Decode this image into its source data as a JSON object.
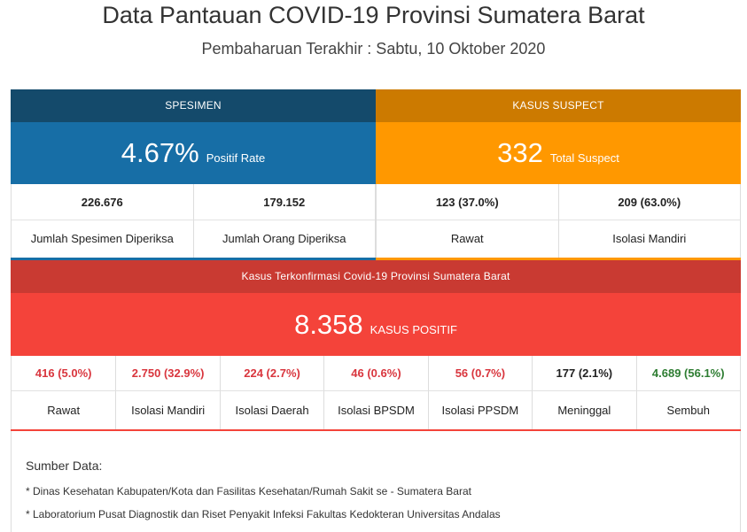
{
  "header": {
    "title": "Data Pantauan COVID-19 Provinsi Sumatera Barat",
    "subtitle": "Pembaharuan Terakhir : Sabtu, 10 Oktober 2020"
  },
  "spesimen": {
    "heading": "SPESIMEN",
    "big_value": "4.67%",
    "big_label": "Positif Rate",
    "cells": [
      {
        "value": "226.676",
        "label": "Jumlah Spesimen Diperiksa"
      },
      {
        "value": "179.152",
        "label": "Jumlah Orang Diperiksa"
      }
    ]
  },
  "suspect": {
    "heading": "KASUS SUSPECT",
    "big_value": "332",
    "big_label": "Total Suspect",
    "cells": [
      {
        "value": "123 (37.0%)",
        "label": "Rawat"
      },
      {
        "value": "209 (63.0%)",
        "label": "Isolasi Mandiri"
      }
    ]
  },
  "confirmed": {
    "heading": "Kasus Terkonfirmasi Covid-19 Provinsi Sumatera Barat",
    "big_value": "8.358",
    "big_label": "KASUS POSITIF",
    "cells": [
      {
        "value": "416 (5.0%)",
        "label": "Rawat"
      },
      {
        "value": "2.750 (32.9%)",
        "label": "Isolasi Mandiri"
      },
      {
        "value": "224 (2.7%)",
        "label": "Isolasi Daerah"
      },
      {
        "value": "46 (0.6%)",
        "label": "Isolasi BPSDM"
      },
      {
        "value": "56 (0.7%)",
        "label": "Isolasi PPSDM"
      },
      {
        "value": "177 (2.1%)",
        "label": "Meninggal"
      },
      {
        "value": "4.689 (56.1%)",
        "label": "Sembuh"
      }
    ]
  },
  "sources": {
    "title": "Sumber Data:",
    "items": [
      "* Dinas Kesehatan Kabupaten/Kota dan Fasilitas Kesehatan/Rumah Sakit se - Sumatera Barat",
      "* Laboratorium Pusat Diagnostik dan Riset Penyakit Infeksi Fakultas Kedokteran Universitas Andalas"
    ]
  },
  "colors": {
    "spesimen_dark": "#144a6b",
    "spesimen": "#176ea6",
    "suspect_dark": "#cc7a00",
    "suspect": "#ff9800",
    "confirmed_dark": "#c93a32",
    "confirmed": "#f4433a",
    "value_red": "#d9363e",
    "value_green": "#2e7d32"
  }
}
